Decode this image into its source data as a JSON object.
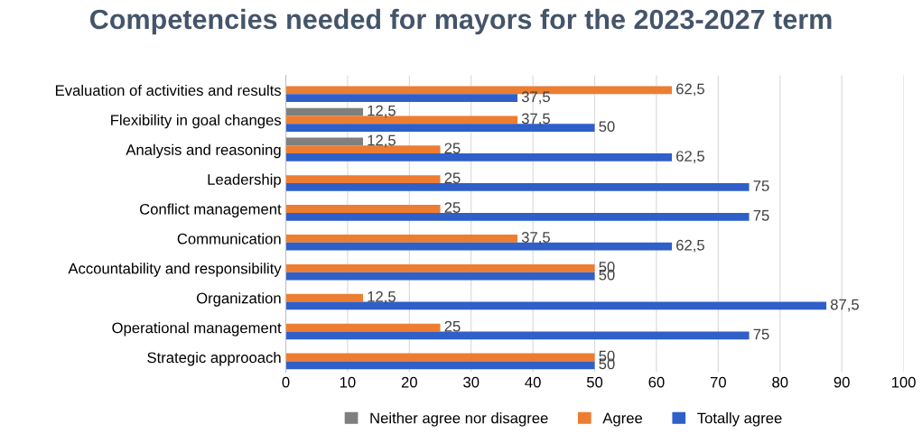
{
  "chart_data": {
    "type": "bar",
    "orientation": "horizontal",
    "title": "Competencies needed for mayors for the 2023-2027 term",
    "categories": [
      "Evaluation of activities and results",
      "Flexibility in goal changes",
      "Analysis and reasoning",
      "Leadership",
      "Conflict management",
      "Communication",
      "Accountability and responsibility",
      "Organization",
      "Operational management",
      "Strategic approoach"
    ],
    "series": [
      {
        "name": "Neither agree nor disagree",
        "color": "#7f7f7f",
        "values": [
          null,
          12.5,
          12.5,
          null,
          null,
          null,
          null,
          null,
          null,
          null
        ],
        "value_labels": [
          null,
          "12,5",
          "12,5",
          null,
          null,
          null,
          null,
          null,
          null,
          null
        ]
      },
      {
        "name": "Agree",
        "color": "#ed7d31",
        "values": [
          62.5,
          37.5,
          25,
          25,
          25,
          37.5,
          50,
          12.5,
          25,
          50
        ],
        "value_labels": [
          "62,5",
          "37,5",
          "25",
          "25",
          "25",
          "37,5",
          "50",
          "12,5",
          "25",
          "50"
        ]
      },
      {
        "name": "Totally agree",
        "color": "#2f5fc8",
        "values": [
          37.5,
          50,
          62.5,
          75,
          75,
          62.5,
          50,
          87.5,
          75,
          50
        ],
        "value_labels": [
          "37,5",
          "50",
          "62,5",
          "75",
          "75",
          "62,5",
          "50",
          "87,5",
          "75",
          "50"
        ]
      }
    ],
    "xlim": [
      0,
      100
    ],
    "xticks": [
      0,
      10,
      20,
      30,
      40,
      50,
      60,
      70,
      80,
      90,
      100
    ],
    "grid": "x",
    "legend": "bottom"
  }
}
